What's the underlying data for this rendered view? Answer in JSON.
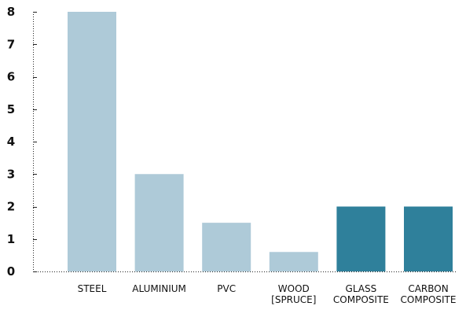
{
  "chart_data": {
    "type": "bar",
    "categories": [
      [
        "STEEL"
      ],
      [
        "ALUMINIUM"
      ],
      [
        "PVC"
      ],
      [
        "WOOD",
        "[SPRUCE]"
      ],
      [
        "GLASS",
        "COMPOSITE"
      ],
      [
        "CARBON",
        "COMPOSITE"
      ]
    ],
    "values": [
      8,
      3,
      1.5,
      0.6,
      2,
      2
    ],
    "bar_colors": [
      "#aecad8",
      "#aecad8",
      "#aecad8",
      "#aecad8",
      "#2f809b",
      "#2f809b"
    ],
    "ylim": [
      0,
      8
    ],
    "yticks": [
      0,
      1,
      2,
      3,
      4,
      5,
      6,
      7,
      8
    ],
    "title": "",
    "xlabel": "",
    "ylabel": "",
    "grid": false,
    "legend": "none"
  }
}
